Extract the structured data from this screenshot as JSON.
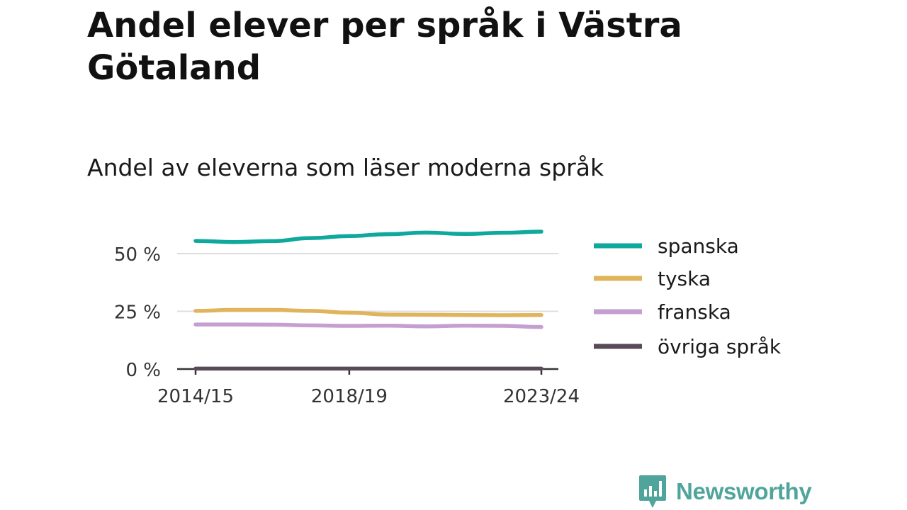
{
  "title": "Andel elever per språk i Västra Götaland",
  "subtitle": "Andel av eleverna som läser moderna språk",
  "brand": "Newsworthy",
  "colors": {
    "brand": "#4fa59b",
    "grid": "#dddddd",
    "axis": "#333333"
  },
  "chart_data": {
    "type": "line",
    "x": [
      "2014/15",
      "2015/16",
      "2016/17",
      "2017/18",
      "2018/19",
      "2019/20",
      "2020/21",
      "2021/22",
      "2022/23",
      "2023/24"
    ],
    "x_ticks": [
      "2014/15",
      "2018/19",
      "2023/24"
    ],
    "y_ticks": [
      0,
      25,
      50
    ],
    "y_tick_labels": [
      "0 %",
      "25 %",
      "50 %"
    ],
    "ylim": [
      0,
      60
    ],
    "grid": true,
    "legend_position": "right",
    "series": [
      {
        "name": "spanska",
        "color": "#0fa89d",
        "values": [
          55.5,
          55.0,
          55.4,
          56.7,
          57.6,
          58.4,
          59.1,
          58.5,
          59.0,
          59.5
        ]
      },
      {
        "name": "tyska",
        "color": "#e0b45a",
        "values": [
          25.2,
          25.6,
          25.6,
          25.2,
          24.4,
          23.6,
          23.5,
          23.4,
          23.3,
          23.4
        ]
      },
      {
        "name": "franska",
        "color": "#c59fd0",
        "values": [
          19.3,
          19.3,
          19.2,
          18.9,
          18.7,
          18.8,
          18.5,
          18.8,
          18.7,
          18.2
        ]
      },
      {
        "name": "övriga språk",
        "color": "#5a4a58",
        "values": [
          0.2,
          0.2,
          0.2,
          0.2,
          0.2,
          0.2,
          0.2,
          0.2,
          0.2,
          0.2
        ]
      }
    ]
  }
}
